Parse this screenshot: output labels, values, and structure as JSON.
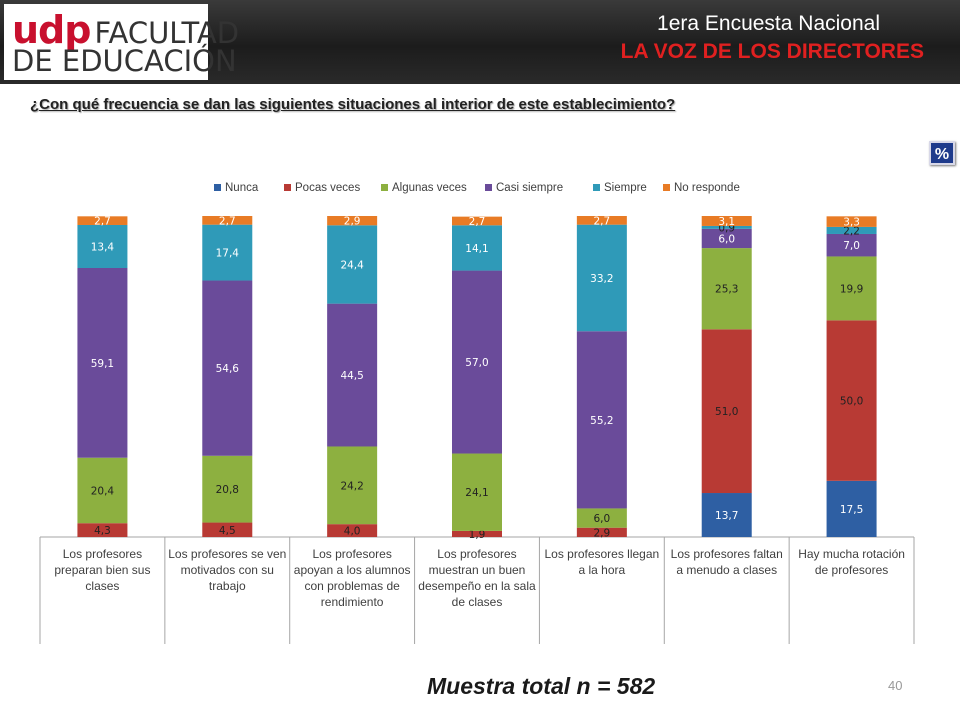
{
  "header": {
    "logo_udp": "udp",
    "logo_line1": "FACULTAD",
    "logo_line2": "DE EDUCACIÓN",
    "title_line1": "1era Encuesta Nacional",
    "title_line2": "LA VOZ DE LOS DIRECTORES"
  },
  "question": "¿Con qué frecuencia se dan las siguientes situaciones al interior de este establecimiento?",
  "percent_badge": "%",
  "sample": "Muestra total n = 582",
  "page_number": "40",
  "chart_data": {
    "type": "bar",
    "stacked": true,
    "ylim": [
      0,
      100
    ],
    "legend_position": "top",
    "grid": false,
    "categories": [
      "Los profesores preparan bien sus clases",
      "Los profesores se ven motivados con su trabajo",
      "Los profesores apoyan a los alumnos con problemas de rendimiento",
      "Los profesores muestran un buen desempeño en la sala de clases",
      "Los profesores llegan a la hora",
      "Los profesores faltan a menudo a clases",
      "Hay mucha rotación de profesores"
    ],
    "category_lines": [
      [
        "Los profesores",
        "preparan bien sus",
        "clases"
      ],
      [
        "Los profesores se ven",
        "motivados con su",
        "trabajo"
      ],
      [
        "Los profesores",
        "apoyan a los alumnos",
        "con problemas de",
        "rendimiento"
      ],
      [
        "Los profesores",
        "muestran un buen",
        "desempeño en la sala",
        "de clases"
      ],
      [
        "Los profesores llegan",
        "a la hora"
      ],
      [
        "Los profesores faltan",
        "a menudo a clases"
      ],
      [
        "Hay mucha rotación",
        "de profesores"
      ]
    ],
    "series": [
      {
        "name": "Nunca",
        "color": "#2e5fa3",
        "values": [
          0,
          0,
          0,
          0,
          0,
          13.7,
          17.5
        ],
        "labels": [
          "",
          "",
          "",
          "",
          "",
          "13,7",
          "17,5"
        ]
      },
      {
        "name": "Pocas veces",
        "color": "#b83a34",
        "values": [
          4.3,
          4.5,
          4.0,
          1.9,
          2.9,
          51.0,
          50.0
        ],
        "labels": [
          "4,3",
          "4,5",
          "4,0",
          "1,9",
          "2,9",
          "51,0",
          "50,0"
        ]
      },
      {
        "name": "Algunas veces",
        "color": "#8db040",
        "values": [
          20.4,
          20.8,
          24.2,
          24.1,
          6.0,
          25.3,
          19.9
        ],
        "labels": [
          "20,4",
          "20,8",
          "24,2",
          "24,1",
          "6,0",
          "25,3",
          "19,9"
        ]
      },
      {
        "name": "Casi siempre",
        "color": "#6a4b9a",
        "values": [
          59.1,
          54.6,
          44.5,
          57.0,
          55.2,
          6.0,
          7.0
        ],
        "labels": [
          "59,1",
          "54,6",
          "44,5",
          "57,0",
          "55,2",
          "6,0",
          "7,0"
        ]
      },
      {
        "name": "Siempre",
        "color": "#2f9ab8",
        "values": [
          13.4,
          17.4,
          24.4,
          14.1,
          33.2,
          0.9,
          2.2
        ],
        "labels": [
          "13,4",
          "17,4",
          "24,4",
          "14,1",
          "33,2",
          "0,9",
          "2,2"
        ]
      },
      {
        "name": "No responde",
        "color": "#e87b25",
        "values": [
          2.7,
          2.7,
          2.9,
          2.7,
          2.7,
          3.1,
          3.3
        ],
        "labels": [
          "2,7",
          "2,7",
          "2,9",
          "2,7",
          "2,7",
          "3,1",
          "3,3"
        ]
      }
    ]
  }
}
